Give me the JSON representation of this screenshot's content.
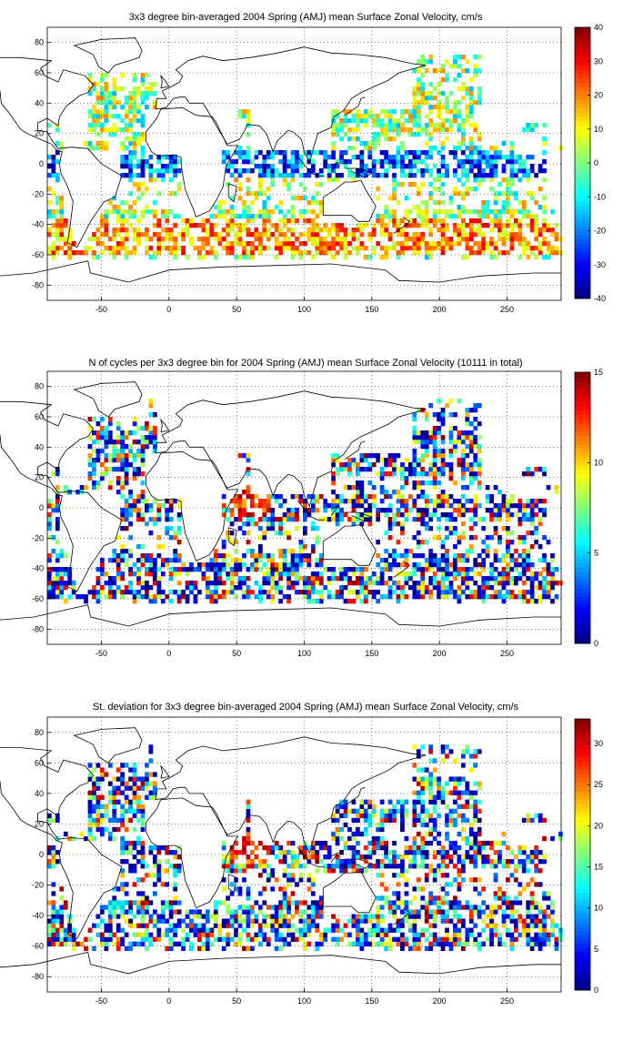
{
  "chart_data": [
    {
      "type": "heatmap",
      "title": "3x3 degree bin-averaged 2004 Spring (AMJ) mean Surface Zonal Velocity, cm/s",
      "xlim": [
        -90,
        290
      ],
      "ylim": [
        -90,
        90
      ],
      "xticks": [
        -50,
        0,
        50,
        100,
        150,
        200,
        250
      ],
      "yticks": [
        -80,
        -60,
        -40,
        -20,
        0,
        20,
        40,
        60,
        80
      ],
      "colorbar": {
        "min": -40,
        "max": 40,
        "ticks": [
          -40,
          -30,
          -20,
          -10,
          0,
          10,
          20,
          30,
          40
        ]
      },
      "grid": true,
      "colormap": "jet",
      "bin_size_deg": 3
    },
    {
      "type": "heatmap",
      "title": "N of cycles per 3x3 degree bin for 2004 Spring (AMJ) mean Surface Zonal Velocity (10111 in total)",
      "xlim": [
        -90,
        290
      ],
      "ylim": [
        -90,
        90
      ],
      "xticks": [
        -50,
        0,
        50,
        100,
        150,
        200,
        250
      ],
      "yticks": [
        -80,
        -60,
        -40,
        -20,
        0,
        20,
        40,
        60,
        80
      ],
      "colorbar": {
        "min": 0,
        "max": 15,
        "ticks": [
          0,
          5,
          10,
          15
        ]
      },
      "grid": true,
      "colormap": "jet",
      "bin_size_deg": 3
    },
    {
      "type": "heatmap",
      "title": "St. deviation for 3x3 degree bin-averaged 2004 Spring (AMJ) mean Surface Zonal Velocity, cm/s",
      "xlim": [
        -90,
        290
      ],
      "ylim": [
        -90,
        90
      ],
      "xticks": [
        -50,
        0,
        50,
        100,
        150,
        200,
        250
      ],
      "yticks": [
        -80,
        -60,
        -40,
        -20,
        0,
        20,
        40,
        60,
        80
      ],
      "colorbar": {
        "min": 0,
        "max": 33,
        "ticks": [
          0,
          5,
          10,
          15,
          20,
          25,
          30
        ]
      },
      "grid": true,
      "colormap": "jet",
      "bin_size_deg": 3
    }
  ]
}
